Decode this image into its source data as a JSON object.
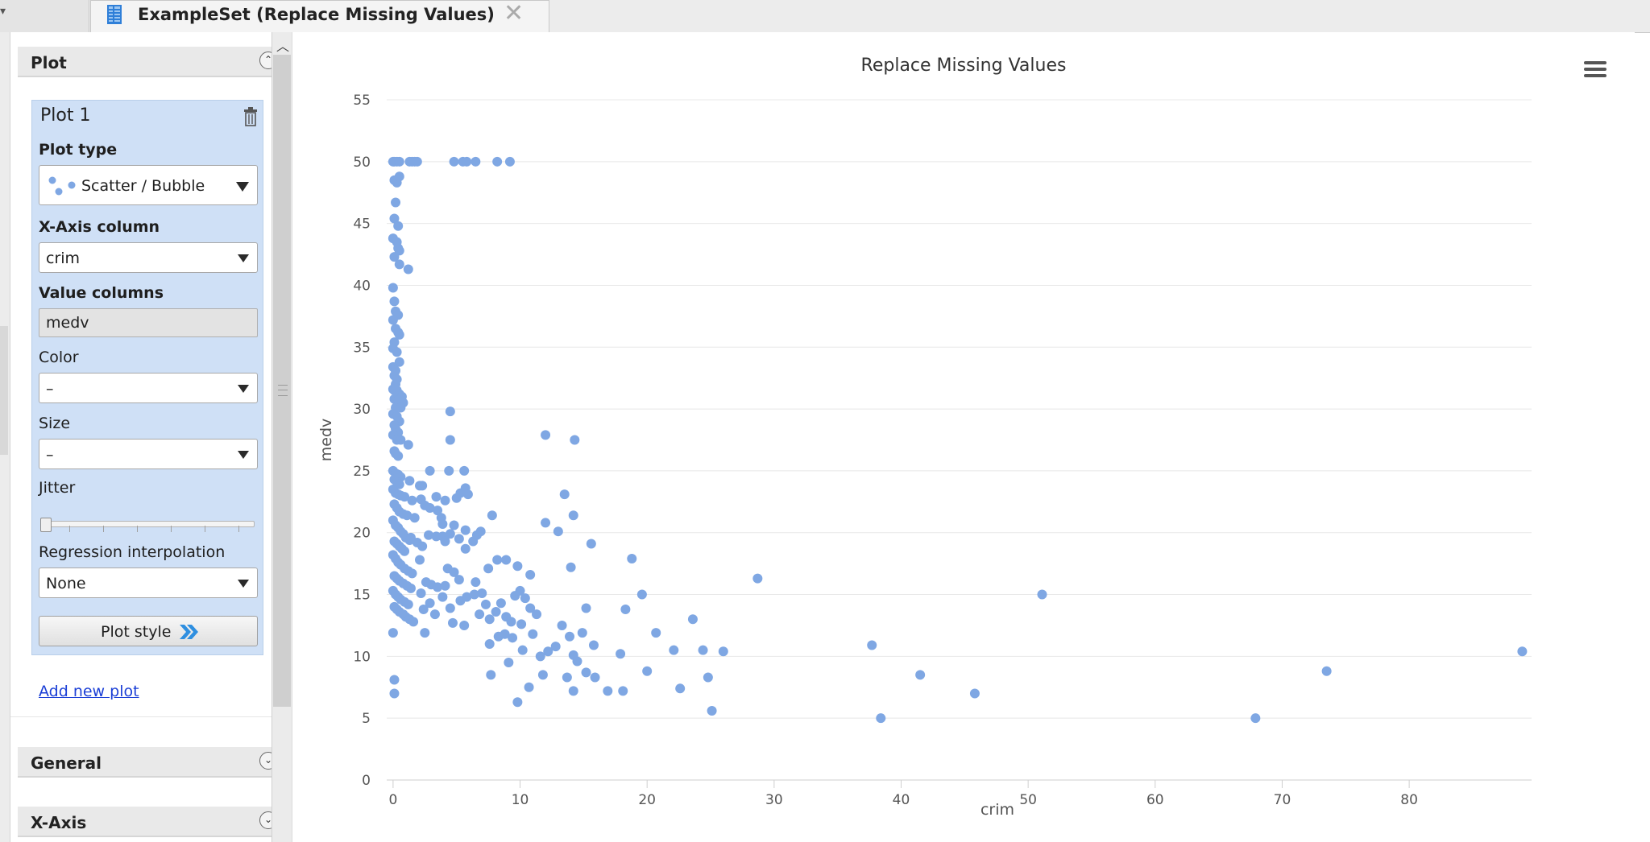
{
  "tab": {
    "title": "ExampleSet (Replace Missing Values)",
    "close_glyph": "✕"
  },
  "sidebar": {
    "plot_section": "Plot",
    "plot": {
      "title": "Plot 1",
      "plot_type_label": "Plot type",
      "plot_type_value": "Scatter / Bubble",
      "x_axis_label": "X-Axis column",
      "x_axis_value": "crim",
      "value_columns_label": "Value columns",
      "value_columns_value": "medv",
      "color_label": "Color",
      "color_value": "–",
      "size_label": "Size",
      "size_value": "–",
      "jitter_label": "Jitter",
      "jitter_value": 0,
      "regression_label": "Regression interpolation",
      "regression_value": "None",
      "plot_style_button": "Plot style"
    },
    "add_new_plot": "Add new plot",
    "general_section": "General",
    "xaxis_section": "X-Axis"
  },
  "colors": {
    "accent": "#7fa7e3",
    "panel_blue": "#cfe0f6",
    "link": "#1b3fd6"
  },
  "chart_data": {
    "type": "scatter",
    "title": "Replace Missing Values",
    "xlabel": "crim",
    "ylabel": "medv",
    "xlim": [
      -0.5,
      89
    ],
    "ylim": [
      0,
      55
    ],
    "xticks": [
      0,
      10,
      20,
      30,
      40,
      50,
      60,
      70,
      80
    ],
    "yticks": [
      0,
      5,
      10,
      15,
      20,
      25,
      30,
      35,
      40,
      45,
      50,
      55
    ],
    "grid": true,
    "series": [
      {
        "points": [
          [
            0.0,
            50
          ],
          [
            0.1,
            50
          ],
          [
            0.3,
            50
          ],
          [
            0.5,
            50
          ],
          [
            1.3,
            50
          ],
          [
            1.5,
            50
          ],
          [
            1.7,
            50
          ],
          [
            1.9,
            50
          ],
          [
            4.8,
            50
          ],
          [
            5.5,
            50
          ],
          [
            5.8,
            50
          ],
          [
            6.5,
            50
          ],
          [
            8.2,
            50
          ],
          [
            9.2,
            50
          ],
          [
            0.1,
            48.5
          ],
          [
            0.3,
            48.3
          ],
          [
            0.5,
            48.8
          ],
          [
            0.2,
            46.7
          ],
          [
            0.1,
            45.4
          ],
          [
            0.4,
            44.8
          ],
          [
            0.0,
            43.8
          ],
          [
            0.3,
            43.5
          ],
          [
            0.4,
            43.0
          ],
          [
            0.5,
            42.8
          ],
          [
            0.1,
            42.3
          ],
          [
            0.5,
            41.7
          ],
          [
            1.2,
            41.3
          ],
          [
            0.0,
            39.8
          ],
          [
            0.1,
            38.7
          ],
          [
            0.2,
            37.9
          ],
          [
            0.4,
            37.6
          ],
          [
            0.0,
            37.2
          ],
          [
            0.2,
            36.5
          ],
          [
            0.4,
            36.2
          ],
          [
            0.5,
            36.0
          ],
          [
            0.1,
            35.4
          ],
          [
            0.0,
            34.9
          ],
          [
            0.3,
            34.6
          ],
          [
            0.5,
            33.8
          ],
          [
            0.0,
            33.4
          ],
          [
            0.2,
            33.1
          ],
          [
            0.1,
            32.7
          ],
          [
            0.3,
            32.4
          ],
          [
            0.2,
            32.0
          ],
          [
            0.0,
            31.6
          ],
          [
            0.1,
            31.5
          ],
          [
            0.3,
            31.5
          ],
          [
            0.5,
            31.2
          ],
          [
            0.7,
            31.0
          ],
          [
            0.1,
            30.8
          ],
          [
            0.4,
            30.7
          ],
          [
            0.8,
            30.5
          ],
          [
            0.2,
            30.1
          ],
          [
            0.6,
            30.1
          ],
          [
            0.0,
            29.6
          ],
          [
            0.3,
            29.4
          ],
          [
            0.5,
            29.0
          ],
          [
            0.1,
            28.7
          ],
          [
            0.2,
            28.4
          ],
          [
            0.4,
            28.1
          ],
          [
            0.0,
            27.9
          ],
          [
            0.3,
            27.5
          ],
          [
            0.6,
            27.5
          ],
          [
            1.2,
            27.1
          ],
          [
            0.1,
            26.6
          ],
          [
            0.2,
            26.4
          ],
          [
            0.4,
            26.2
          ],
          [
            4.5,
            29.8
          ],
          [
            4.5,
            27.5
          ],
          [
            0.0,
            25.0
          ],
          [
            0.2,
            24.8
          ],
          [
            0.4,
            24.7
          ],
          [
            0.6,
            24.5
          ],
          [
            0.1,
            24.3
          ],
          [
            0.3,
            24.1
          ],
          [
            0.5,
            23.9
          ],
          [
            1.3,
            24.2
          ],
          [
            2.1,
            23.8
          ],
          [
            2.3,
            23.8
          ],
          [
            0.0,
            23.5
          ],
          [
            0.2,
            23.2
          ],
          [
            0.4,
            23.1
          ],
          [
            0.6,
            23.0
          ],
          [
            0.9,
            22.9
          ],
          [
            1.5,
            22.6
          ],
          [
            2.2,
            22.7
          ],
          [
            2.5,
            22.2
          ],
          [
            2.9,
            22.0
          ],
          [
            3.4,
            22.9
          ],
          [
            4.1,
            22.6
          ],
          [
            5.0,
            22.8
          ],
          [
            5.3,
            23.2
          ],
          [
            5.7,
            23.6
          ],
          [
            5.9,
            23.1
          ],
          [
            2.9,
            25.0
          ],
          [
            4.4,
            25.0
          ],
          [
            5.6,
            25.0
          ],
          [
            0.1,
            22.3
          ],
          [
            0.3,
            22.0
          ],
          [
            0.5,
            21.7
          ],
          [
            0.8,
            21.5
          ],
          [
            1.1,
            21.4
          ],
          [
            1.7,
            21.2
          ],
          [
            3.5,
            21.8
          ],
          [
            3.8,
            21.2
          ],
          [
            3.9,
            20.7
          ],
          [
            4.8,
            20.6
          ],
          [
            7.8,
            21.4
          ],
          [
            0.0,
            21.0
          ],
          [
            0.2,
            20.6
          ],
          [
            0.4,
            20.4
          ],
          [
            0.6,
            20.1
          ],
          [
            0.8,
            19.9
          ],
          [
            1.0,
            19.6
          ],
          [
            1.3,
            19.4
          ],
          [
            0.1,
            19.3
          ],
          [
            0.3,
            19.1
          ],
          [
            0.5,
            18.9
          ],
          [
            0.7,
            18.7
          ],
          [
            0.9,
            18.5
          ],
          [
            1.4,
            19.6
          ],
          [
            1.9,
            19.2
          ],
          [
            2.3,
            18.9
          ],
          [
            2.8,
            19.8
          ],
          [
            3.4,
            19.7
          ],
          [
            3.9,
            19.7
          ],
          [
            4.1,
            19.3
          ],
          [
            4.5,
            19.9
          ],
          [
            5.2,
            19.5
          ],
          [
            5.7,
            20.2
          ],
          [
            6.3,
            19.3
          ],
          [
            6.6,
            19.8
          ],
          [
            6.9,
            20.1
          ],
          [
            0.0,
            18.2
          ],
          [
            0.2,
            17.9
          ],
          [
            0.4,
            17.6
          ],
          [
            0.6,
            17.4
          ],
          [
            0.9,
            17.1
          ],
          [
            1.2,
            16.9
          ],
          [
            1.5,
            16.7
          ],
          [
            0.1,
            16.5
          ],
          [
            0.3,
            16.3
          ],
          [
            0.5,
            16.1
          ],
          [
            0.8,
            15.9
          ],
          [
            1.1,
            15.7
          ],
          [
            1.4,
            15.5
          ],
          [
            2.1,
            17.8
          ],
          [
            2.6,
            16.0
          ],
          [
            3.0,
            15.8
          ],
          [
            3.5,
            15.6
          ],
          [
            4.1,
            15.7
          ],
          [
            4.3,
            17.1
          ],
          [
            4.8,
            16.8
          ],
          [
            5.2,
            16.2
          ],
          [
            5.7,
            18.7
          ],
          [
            6.5,
            16.0
          ],
          [
            7.0,
            15.1
          ],
          [
            7.5,
            17.1
          ],
          [
            8.2,
            17.8
          ],
          [
            8.9,
            17.8
          ],
          [
            9.8,
            17.3
          ],
          [
            10.8,
            16.6
          ],
          [
            0.0,
            15.3
          ],
          [
            0.2,
            15.0
          ],
          [
            0.4,
            14.8
          ],
          [
            0.6,
            14.6
          ],
          [
            0.9,
            14.4
          ],
          [
            1.2,
            14.2
          ],
          [
            0.1,
            14.0
          ],
          [
            0.3,
            13.8
          ],
          [
            0.5,
            13.6
          ],
          [
            0.8,
            13.4
          ],
          [
            1.0,
            13.2
          ],
          [
            1.3,
            13.0
          ],
          [
            1.6,
            12.8
          ],
          [
            2.2,
            15.1
          ],
          [
            2.4,
            13.8
          ],
          [
            2.9,
            14.3
          ],
          [
            3.3,
            13.4
          ],
          [
            3.9,
            14.8
          ],
          [
            4.5,
            13.9
          ],
          [
            4.7,
            12.7
          ],
          [
            5.3,
            14.5
          ],
          [
            5.8,
            14.8
          ],
          [
            6.4,
            15.0
          ],
          [
            6.8,
            13.4
          ],
          [
            7.3,
            14.2
          ],
          [
            7.6,
            13.0
          ],
          [
            8.1,
            13.6
          ],
          [
            8.5,
            14.3
          ],
          [
            8.9,
            13.2
          ],
          [
            9.3,
            12.8
          ],
          [
            9.6,
            14.9
          ],
          [
            10.0,
            15.3
          ],
          [
            10.4,
            14.7
          ],
          [
            10.8,
            13.9
          ],
          [
            11.3,
            13.4
          ],
          [
            2.5,
            11.9
          ],
          [
            0.0,
            11.9
          ],
          [
            5.6,
            12.5
          ],
          [
            7.6,
            11.0
          ],
          [
            8.3,
            11.6
          ],
          [
            8.8,
            11.8
          ],
          [
            9.4,
            11.5
          ],
          [
            10.1,
            12.6
          ],
          [
            11.0,
            11.8
          ],
          [
            11.6,
            10.0
          ],
          [
            12.2,
            10.4
          ],
          [
            12.8,
            10.8
          ],
          [
            13.3,
            12.5
          ],
          [
            13.9,
            11.6
          ],
          [
            14.2,
            10.1
          ],
          [
            14.5,
            9.6
          ],
          [
            14.9,
            11.9
          ],
          [
            15.2,
            13.9
          ],
          [
            15.8,
            10.9
          ],
          [
            17.9,
            10.2
          ],
          [
            18.3,
            13.8
          ],
          [
            19.6,
            15.0
          ],
          [
            20.7,
            11.9
          ],
          [
            22.1,
            10.5
          ],
          [
            23.6,
            13.0
          ],
          [
            24.4,
            10.5
          ],
          [
            26.0,
            10.4
          ],
          [
            7.7,
            8.5
          ],
          [
            9.1,
            9.5
          ],
          [
            10.2,
            10.5
          ],
          [
            10.7,
            7.5
          ],
          [
            11.8,
            8.5
          ],
          [
            13.7,
            8.3
          ],
          [
            14.2,
            7.2
          ],
          [
            15.2,
            8.7
          ],
          [
            15.9,
            8.3
          ],
          [
            16.9,
            7.2
          ],
          [
            18.1,
            7.2
          ],
          [
            20.0,
            8.8
          ],
          [
            22.6,
            7.4
          ],
          [
            24.8,
            8.3
          ],
          [
            9.8,
            6.3
          ],
          [
            25.1,
            5.6
          ],
          [
            0.1,
            8.1
          ],
          [
            0.1,
            7.0
          ],
          [
            12.0,
            27.9
          ],
          [
            14.3,
            27.5
          ],
          [
            13.5,
            23.1
          ],
          [
            14.2,
            21.4
          ],
          [
            12.0,
            20.8
          ],
          [
            13.0,
            20.1
          ],
          [
            15.6,
            19.1
          ],
          [
            14.0,
            17.2
          ],
          [
            18.8,
            17.9
          ],
          [
            28.7,
            16.3
          ],
          [
            37.7,
            10.9
          ],
          [
            38.4,
            5.0
          ],
          [
            41.5,
            8.5
          ],
          [
            45.8,
            7.0
          ],
          [
            51.1,
            15.0
          ],
          [
            67.9,
            5.0
          ],
          [
            73.5,
            8.8
          ],
          [
            88.9,
            10.4
          ]
        ]
      }
    ]
  }
}
